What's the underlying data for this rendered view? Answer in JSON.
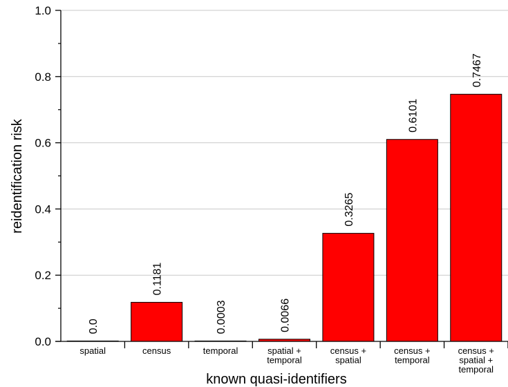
{
  "chart_data": {
    "type": "bar",
    "categories": [
      [
        "spatial"
      ],
      [
        "census"
      ],
      [
        "temporal"
      ],
      [
        "spatial +",
        "temporal"
      ],
      [
        "census +",
        "spatial"
      ],
      [
        "census +",
        "temporal"
      ],
      [
        "census +",
        "spatial +",
        "temporal"
      ]
    ],
    "values": [
      0.0,
      0.1181,
      0.0003,
      0.0066,
      0.3265,
      0.6101,
      0.7467
    ],
    "value_labels": [
      "0.0",
      "0.1181",
      "0.0003",
      "0.0066",
      "0.3265",
      "0.6101",
      "0.7467"
    ],
    "xlabel": "known quasi-identifiers",
    "ylabel": "reidentification risk",
    "ylim": [
      0,
      1.0
    ],
    "yticks": [
      "0.0",
      "0.2",
      "0.4",
      "0.6",
      "0.8",
      "1.0"
    ],
    "grid": true,
    "bar_color": "#ff0000",
    "bar_edge_color": "#000000",
    "grid_color": "#c8c8c8"
  }
}
